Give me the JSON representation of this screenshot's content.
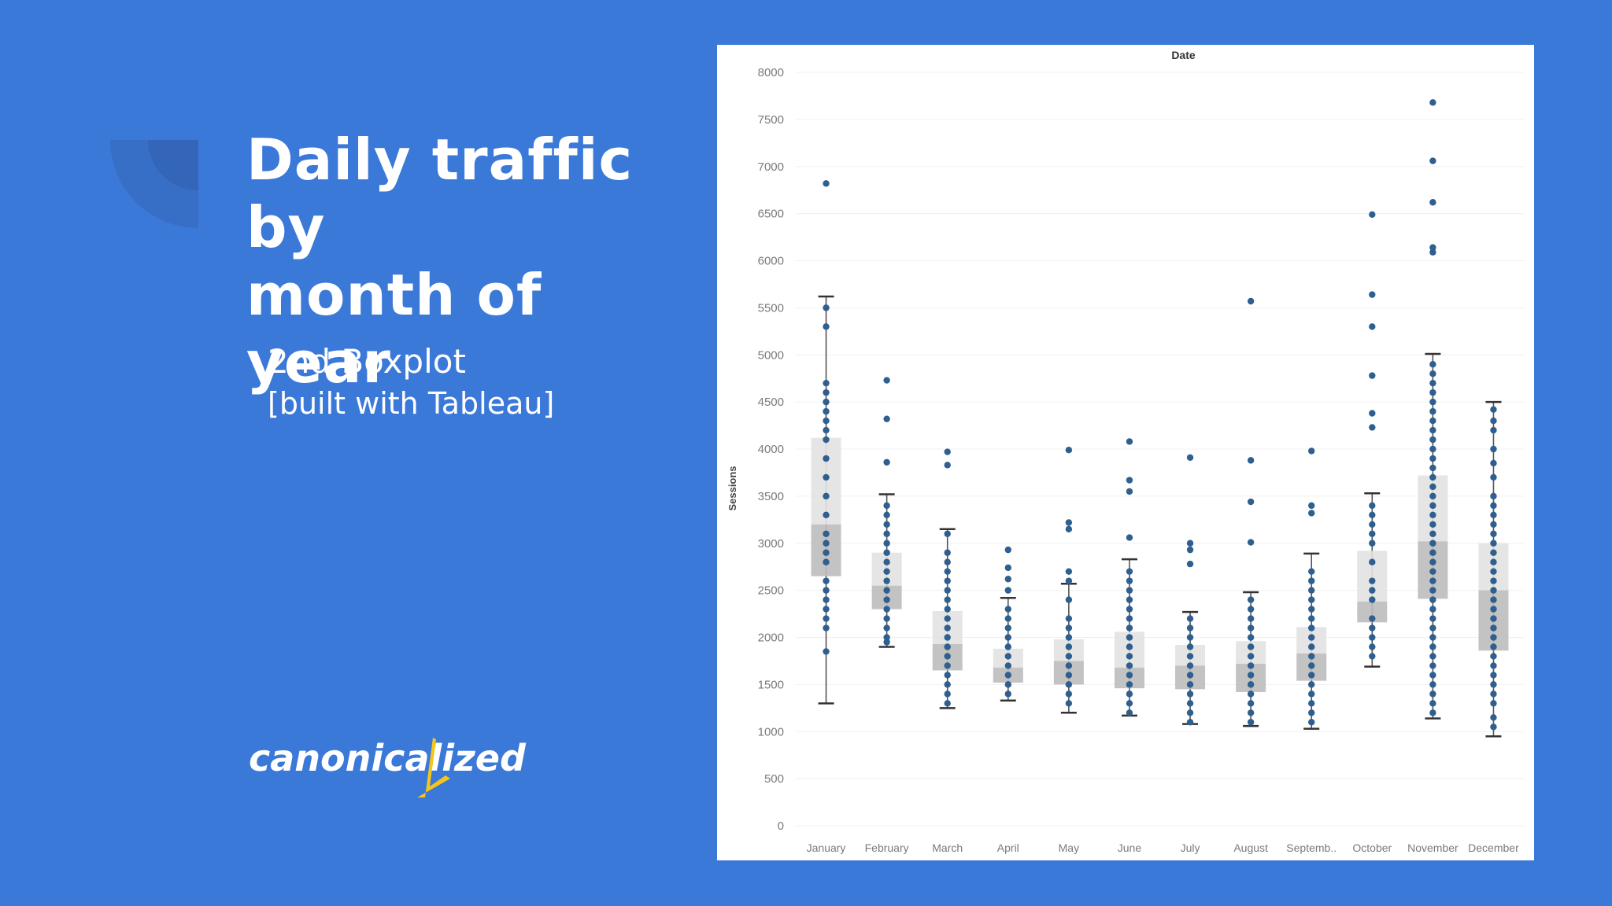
{
  "slide": {
    "title_line1": "Daily traffic by",
    "title_line2": "month of year",
    "subtitle": "2nd Boxplot",
    "subtitle2": "[built with Tableau]",
    "logo_text": "canonicalized"
  },
  "colors": {
    "background": "#3b79d8",
    "point": "#2e5f8e",
    "box_light": "#e2e2e2",
    "box_dark": "#bdbdbd",
    "logo_accent": "#f5c518"
  },
  "chart_data": {
    "type": "boxplot",
    "title": "Date",
    "xlabel": "",
    "ylabel": "Sessions",
    "ylim": [
      0,
      8000
    ],
    "yticks": [
      0,
      500,
      1000,
      1500,
      2000,
      2500,
      3000,
      3500,
      4000,
      4500,
      5000,
      5500,
      6000,
      6500,
      7000,
      7500,
      8000
    ],
    "grid": true,
    "categories": [
      "January",
      "February",
      "March",
      "April",
      "May",
      "June",
      "July",
      "August",
      "Septemb..",
      "October",
      "November",
      "December"
    ],
    "boxes": [
      {
        "min": 1300,
        "q1": 2650,
        "median": 3200,
        "q3": 4120,
        "max": 5620,
        "outliers": [
          6820,
          5500,
          5300,
          4700,
          4600,
          4500,
          4400,
          4300,
          4200,
          4100,
          3900,
          3700,
          3500,
          3300,
          3100,
          3000,
          2900,
          2800,
          2600,
          2500,
          2400,
          2300,
          2200,
          2100,
          1850
        ]
      },
      {
        "min": 1900,
        "q1": 2300,
        "median": 2550,
        "q3": 2900,
        "max": 3520,
        "outliers": [
          4730,
          4320,
          3860,
          3400,
          3300,
          3200,
          3100,
          3000,
          2900,
          2800,
          2700,
          2600,
          2500,
          2400,
          2300,
          2200,
          2100,
          2000,
          1950
        ]
      },
      {
        "min": 1250,
        "q1": 1650,
        "median": 1930,
        "q3": 2280,
        "max": 3150,
        "outliers": [
          3970,
          3830,
          3100,
          2900,
          2800,
          2700,
          2600,
          2500,
          2400,
          2300,
          2200,
          2100,
          2000,
          1900,
          1800,
          1700,
          1600,
          1500,
          1400,
          1300
        ]
      },
      {
        "min": 1330,
        "q1": 1520,
        "median": 1680,
        "q3": 1880,
        "max": 2420,
        "outliers": [
          2930,
          2740,
          2620,
          2500,
          2300,
          2200,
          2100,
          2000,
          1900,
          1800,
          1700,
          1600,
          1500,
          1400
        ]
      },
      {
        "min": 1200,
        "q1": 1500,
        "median": 1750,
        "q3": 1980,
        "max": 2570,
        "outliers": [
          3990,
          3220,
          3150,
          2700,
          2600,
          2400,
          2200,
          2100,
          2000,
          1900,
          1800,
          1700,
          1600,
          1500,
          1400,
          1300
        ]
      },
      {
        "min": 1170,
        "q1": 1460,
        "median": 1680,
        "q3": 2060,
        "max": 2830,
        "outliers": [
          4080,
          3670,
          3550,
          3060,
          2700,
          2600,
          2500,
          2400,
          2300,
          2200,
          2100,
          2000,
          1900,
          1800,
          1700,
          1600,
          1500,
          1400,
          1300,
          1200
        ]
      },
      {
        "min": 1080,
        "q1": 1450,
        "median": 1700,
        "q3": 1920,
        "max": 2270,
        "outliers": [
          3910,
          3000,
          2930,
          2780,
          2200,
          2100,
          2000,
          1900,
          1800,
          1700,
          1600,
          1500,
          1400,
          1300,
          1200,
          1100
        ]
      },
      {
        "min": 1060,
        "q1": 1420,
        "median": 1720,
        "q3": 1960,
        "max": 2480,
        "outliers": [
          5570,
          3880,
          3440,
          3010,
          2400,
          2300,
          2200,
          2100,
          2000,
          1900,
          1800,
          1700,
          1600,
          1500,
          1400,
          1300,
          1200,
          1100
        ]
      },
      {
        "min": 1030,
        "q1": 1540,
        "median": 1830,
        "q3": 2110,
        "max": 2890,
        "outliers": [
          3980,
          3400,
          3320,
          2700,
          2600,
          2500,
          2400,
          2300,
          2200,
          2100,
          2000,
          1900,
          1800,
          1700,
          1600,
          1500,
          1400,
          1300,
          1200,
          1100
        ]
      },
      {
        "min": 1690,
        "q1": 2160,
        "median": 2380,
        "q3": 2920,
        "max": 3530,
        "outliers": [
          6490,
          5640,
          5300,
          4780,
          4380,
          4230,
          3400,
          3300,
          3200,
          3100,
          3000,
          2800,
          2600,
          2500,
          2400,
          2200,
          2100,
          2000,
          1900,
          1800
        ]
      },
      {
        "min": 1140,
        "q1": 2410,
        "median": 3020,
        "q3": 3720,
        "max": 5010,
        "outliers": [
          7680,
          7060,
          6620,
          6140,
          6090,
          4900,
          4800,
          4700,
          4600,
          4500,
          4400,
          4300,
          4200,
          4100,
          4000,
          3900,
          3800,
          3700,
          3600,
          3500,
          3400,
          3300,
          3200,
          3100,
          3000,
          2900,
          2800,
          2700,
          2600,
          2500,
          2400,
          2300,
          2200,
          2100,
          2000,
          1900,
          1800,
          1700,
          1600,
          1500,
          1400,
          1300,
          1200
        ]
      },
      {
        "min": 950,
        "q1": 1860,
        "median": 2500,
        "q3": 3000,
        "max": 4500,
        "outliers": [
          4420,
          4300,
          4200,
          4000,
          3850,
          3700,
          3500,
          3400,
          3300,
          3200,
          3100,
          3000,
          2900,
          2800,
          2700,
          2600,
          2500,
          2400,
          2300,
          2200,
          2100,
          2000,
          1900,
          1800,
          1700,
          1600,
          1500,
          1400,
          1300,
          1150,
          1050
        ]
      }
    ]
  }
}
